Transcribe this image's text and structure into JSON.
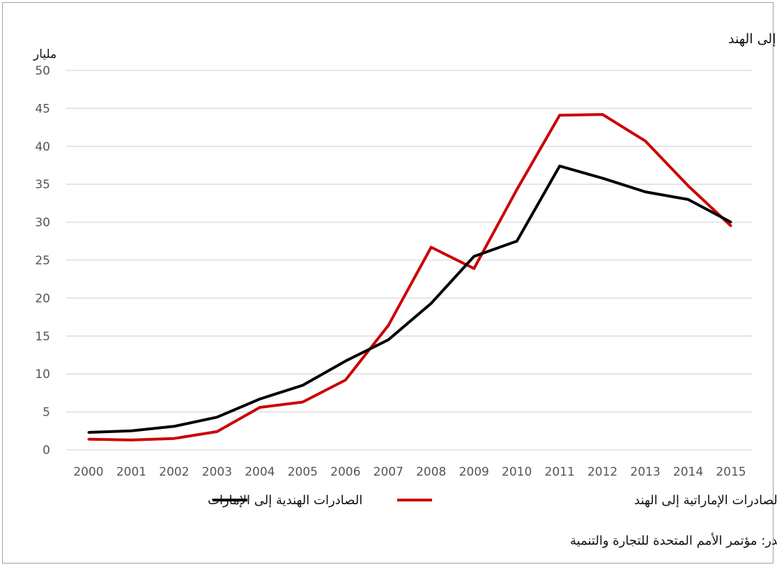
{
  "chart_data": {
    "type": "line",
    "title": "بيانات الصادرات (مليارات الدولارات)/ الصادرات الهندية إلى الإمارات/ الصادرات الإماراتية إلى الهند",
    "ylabel": "مليار",
    "xlabel": "",
    "ylim": [
      0,
      50
    ],
    "yticks": [
      0,
      5,
      10,
      15,
      20,
      25,
      30,
      35,
      40,
      45,
      50
    ],
    "grid": true,
    "legend_placement": "bottom",
    "categories": [
      "2000",
      "2001",
      "2002",
      "2003",
      "2004",
      "2005",
      "2006",
      "2007",
      "2008",
      "2009",
      "2010",
      "2011",
      "2012",
      "2013",
      "2014",
      "2015"
    ],
    "series": [
      {
        "name": "الصادرات الهندية إلى الإمارات",
        "color": "#000000",
        "values": [
          2.3,
          2.5,
          3.1,
          4.3,
          6.7,
          8.5,
          11.7,
          14.5,
          19.3,
          25.5,
          27.5,
          37.4,
          35.8,
          34.0,
          33.0,
          30.0
        ]
      },
      {
        "name": "الصادرات الإماراتية إلى الهند",
        "color": "#cc0000",
        "values": [
          1.4,
          1.3,
          1.5,
          2.4,
          5.6,
          6.3,
          9.2,
          16.4,
          26.7,
          23.9,
          34.3,
          44.1,
          44.2,
          40.7,
          34.8,
          29.5
        ]
      }
    ],
    "source": "المصدر: مؤتمر الأمم المتحدة للتجارة والتنمية"
  }
}
